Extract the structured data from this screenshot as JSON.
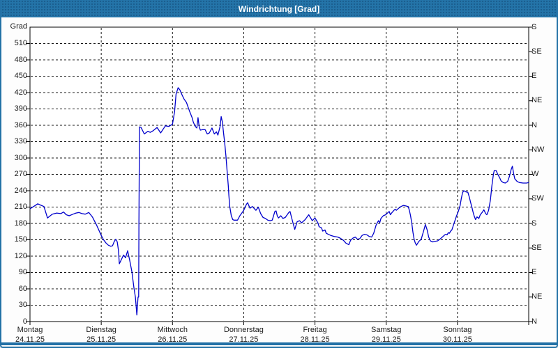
{
  "window": {
    "title": "Windrichtung [Grad]"
  },
  "colors": {
    "titlebar": "#2474a9",
    "window_border": "#2371a6",
    "plot_background": "#ffffff",
    "plot_frame": "#000000",
    "gridline": "#1a1a1a",
    "line": "#0000cc",
    "text": "#1a1a1a"
  },
  "chart_data": {
    "type": "line",
    "title": "Windrichtung [Grad]",
    "ylabel": "Grad",
    "y_axis_left": {
      "min": 0,
      "max": 540,
      "tick_step": 30,
      "grid_step": 30
    },
    "y_axis_right": {
      "tick_step_degrees": 45,
      "labels_top_to_bottom": [
        "S",
        "SE",
        "E",
        "NE",
        "N",
        "NW",
        "W",
        "SW",
        "S",
        "SE",
        "E",
        "NE",
        "N"
      ]
    },
    "x_axis": {
      "days": [
        {
          "name": "Montag",
          "date": "24.11.25"
        },
        {
          "name": "Dienstag",
          "date": "25.11.25"
        },
        {
          "name": "Mittwoch",
          "date": "26.11.25"
        },
        {
          "name": "Donnerstag",
          "date": "27.11.25"
        },
        {
          "name": "Freitag",
          "date": "28.11.25"
        },
        {
          "name": "Samstag",
          "date": "29.11.25"
        },
        {
          "name": "Sonntag",
          "date": "30.11.25"
        }
      ],
      "hours_total": 168,
      "grid_at_day_boundaries": true
    },
    "legend": "none",
    "series": [
      {
        "name": "Windrichtung",
        "unit": "Grad",
        "color": "#0000cc",
        "points_hour_value": [
          [
            0,
            207
          ],
          [
            1.5,
            212
          ],
          [
            2.6,
            216
          ],
          [
            3.8,
            213
          ],
          [
            4.7,
            211
          ],
          [
            5.9,
            190
          ],
          [
            6.6,
            193
          ],
          [
            7.5,
            197
          ],
          [
            9,
            199
          ],
          [
            10.4,
            198
          ],
          [
            11.3,
            201
          ],
          [
            12.2,
            196
          ],
          [
            13.2,
            194
          ],
          [
            14.5,
            197
          ],
          [
            15.5,
            199
          ],
          [
            16.5,
            200
          ],
          [
            17.5,
            198
          ],
          [
            18.6,
            197
          ],
          [
            19.8,
            200
          ],
          [
            21,
            192
          ],
          [
            22.5,
            176
          ],
          [
            24,
            158
          ],
          [
            24.8,
            150
          ],
          [
            25.6,
            144
          ],
          [
            26.4,
            140
          ],
          [
            27.2,
            138
          ],
          [
            27.8,
            139
          ],
          [
            28.4,
            147
          ],
          [
            28.9,
            151
          ],
          [
            29.4,
            146
          ],
          [
            29.8,
            131
          ],
          [
            30.1,
            106
          ],
          [
            30.8,
            114
          ],
          [
            31.5,
            122
          ],
          [
            32.2,
            117
          ],
          [
            32.9,
            130
          ],
          [
            33.6,
            112
          ],
          [
            34.3,
            92
          ],
          [
            35,
            62
          ],
          [
            35.5,
            45
          ],
          [
            36,
            12
          ],
          [
            36.4,
            45
          ],
          [
            36.6,
            45
          ],
          [
            36.7,
            185
          ],
          [
            36.9,
            357
          ],
          [
            37.4,
            356
          ],
          [
            38.5,
            344
          ],
          [
            39.7,
            349
          ],
          [
            40.5,
            347
          ],
          [
            41.5,
            350
          ],
          [
            42.8,
            356
          ],
          [
            44,
            346
          ],
          [
            45.6,
            359
          ],
          [
            46.8,
            358
          ],
          [
            48,
            362
          ],
          [
            48.7,
            385
          ],
          [
            49.2,
            417
          ],
          [
            49.9,
            429
          ],
          [
            50.5,
            425
          ],
          [
            51.1,
            417
          ],
          [
            51.9,
            408
          ],
          [
            52.7,
            402
          ],
          [
            53.4,
            391
          ],
          [
            53.8,
            385
          ],
          [
            54.6,
            374
          ],
          [
            55,
            366
          ],
          [
            55.4,
            361
          ],
          [
            55.8,
            357
          ],
          [
            56.2,
            355
          ],
          [
            56.6,
            374
          ],
          [
            57,
            357
          ],
          [
            57.4,
            351
          ],
          [
            58.1,
            352
          ],
          [
            59,
            352
          ],
          [
            59.7,
            344
          ],
          [
            60.4,
            346
          ],
          [
            61.3,
            355
          ],
          [
            62.1,
            344
          ],
          [
            62.8,
            348
          ],
          [
            63.3,
            342
          ],
          [
            64,
            357
          ],
          [
            64.4,
            376
          ],
          [
            64.8,
            366
          ],
          [
            65.2,
            346
          ],
          [
            65.6,
            327
          ],
          [
            66,
            304
          ],
          [
            66.4,
            276
          ],
          [
            66.8,
            249
          ],
          [
            67,
            232
          ],
          [
            67.3,
            211
          ],
          [
            67.8,
            194
          ],
          [
            68.3,
            187
          ],
          [
            68.7,
            186
          ],
          [
            69.9,
            186
          ],
          [
            70.7,
            194
          ],
          [
            71.5,
            200
          ],
          [
            72,
            204
          ],
          [
            72.9,
            215
          ],
          [
            73.3,
            218
          ],
          [
            74.1,
            208
          ],
          [
            74.9,
            211
          ],
          [
            76.1,
            204
          ],
          [
            76.9,
            210
          ],
          [
            77.7,
            198
          ],
          [
            78.5,
            191
          ],
          [
            79.3,
            189
          ],
          [
            80.1,
            186
          ],
          [
            80.9,
            185
          ],
          [
            81.6,
            186
          ],
          [
            82.5,
            202
          ],
          [
            82.9,
            203
          ],
          [
            83.3,
            194
          ],
          [
            83.7,
            190
          ],
          [
            84.5,
            194
          ],
          [
            85.2,
            189
          ],
          [
            86,
            191
          ],
          [
            87.2,
            200
          ],
          [
            87.6,
            202
          ],
          [
            88.4,
            185
          ],
          [
            89.2,
            169
          ],
          [
            90,
            183
          ],
          [
            90.8,
            185
          ],
          [
            91.5,
            181
          ],
          [
            92.7,
            187
          ],
          [
            93.9,
            196
          ],
          [
            95.1,
            185
          ],
          [
            96,
            190
          ],
          [
            97,
            181
          ],
          [
            97.4,
            174
          ],
          [
            98.2,
            172
          ],
          [
            98.6,
            166
          ],
          [
            99.4,
            168
          ],
          [
            99.8,
            162
          ],
          [
            100.5,
            160
          ],
          [
            101.3,
            158
          ],
          [
            102.5,
            156
          ],
          [
            103.7,
            155
          ],
          [
            104.5,
            153
          ],
          [
            105.6,
            149
          ],
          [
            106.4,
            144
          ],
          [
            107.4,
            141
          ],
          [
            108,
            149
          ],
          [
            108.8,
            153
          ],
          [
            109.6,
            155
          ],
          [
            110.3,
            151
          ],
          [
            111.1,
            152
          ],
          [
            111.9,
            158
          ],
          [
            112.7,
            160
          ],
          [
            113.5,
            159
          ],
          [
            114.3,
            156
          ],
          [
            115.1,
            155
          ],
          [
            115.8,
            162
          ],
          [
            116.6,
            177
          ],
          [
            117,
            181
          ],
          [
            117.4,
            185
          ],
          [
            117.8,
            181
          ],
          [
            118.2,
            189
          ],
          [
            119,
            194
          ],
          [
            119.8,
            196
          ],
          [
            121,
            202
          ],
          [
            121.4,
            196
          ],
          [
            121.8,
            199
          ],
          [
            122.6,
            204
          ],
          [
            123,
            206
          ],
          [
            123.4,
            204
          ],
          [
            124.2,
            208
          ],
          [
            125,
            211
          ],
          [
            125.8,
            213
          ],
          [
            126.6,
            212
          ],
          [
            127.4,
            211
          ],
          [
            127.8,
            204
          ],
          [
            128.2,
            194
          ],
          [
            128.6,
            181
          ],
          [
            129,
            164
          ],
          [
            129.4,
            151
          ],
          [
            129.8,
            144
          ],
          [
            130.2,
            140
          ],
          [
            131,
            147
          ],
          [
            131.4,
            149
          ],
          [
            131.8,
            151
          ],
          [
            132.6,
            166
          ],
          [
            133.2,
            178
          ],
          [
            133.8,
            168
          ],
          [
            134.3,
            155
          ],
          [
            134.9,
            148
          ],
          [
            135.7,
            146
          ],
          [
            136.5,
            147
          ],
          [
            137.3,
            148
          ],
          [
            138.1,
            151
          ],
          [
            138.9,
            155
          ],
          [
            139.7,
            159
          ],
          [
            140.1,
            160
          ],
          [
            140.5,
            159
          ],
          [
            140.9,
            163
          ],
          [
            141.3,
            162
          ],
          [
            141.7,
            166
          ],
          [
            142.1,
            168
          ],
          [
            142.9,
            181
          ],
          [
            143.7,
            194
          ],
          [
            144.3,
            202
          ],
          [
            144.9,
            213
          ],
          [
            145.3,
            226
          ],
          [
            145.7,
            236
          ],
          [
            146.1,
            240
          ],
          [
            146.8,
            238
          ],
          [
            147.5,
            237
          ],
          [
            148,
            228
          ],
          [
            148.4,
            219
          ],
          [
            148.8,
            211
          ],
          [
            149.2,
            202
          ],
          [
            149.6,
            194
          ],
          [
            150.1,
            187
          ],
          [
            150.6,
            192
          ],
          [
            151.2,
            189
          ],
          [
            151.7,
            196
          ],
          [
            152.3,
            200
          ],
          [
            152.9,
            205
          ],
          [
            153.5,
            198
          ],
          [
            153.9,
            196
          ],
          [
            154.5,
            204
          ],
          [
            155.1,
            223
          ],
          [
            155.6,
            249
          ],
          [
            156.1,
            270
          ],
          [
            156.4,
            277
          ],
          [
            157,
            277
          ],
          [
            157.6,
            270
          ],
          [
            158.2,
            264
          ],
          [
            158.7,
            258
          ],
          [
            159.4,
            255
          ],
          [
            160.1,
            254
          ],
          [
            160.9,
            257
          ],
          [
            161.5,
            266
          ],
          [
            162.1,
            279
          ],
          [
            162.5,
            285
          ],
          [
            162.9,
            272
          ],
          [
            163.3,
            262
          ],
          [
            164.1,
            257
          ],
          [
            164.9,
            255
          ],
          [
            166.1,
            254
          ],
          [
            167.3,
            254
          ],
          [
            168,
            255
          ]
        ]
      }
    ]
  }
}
